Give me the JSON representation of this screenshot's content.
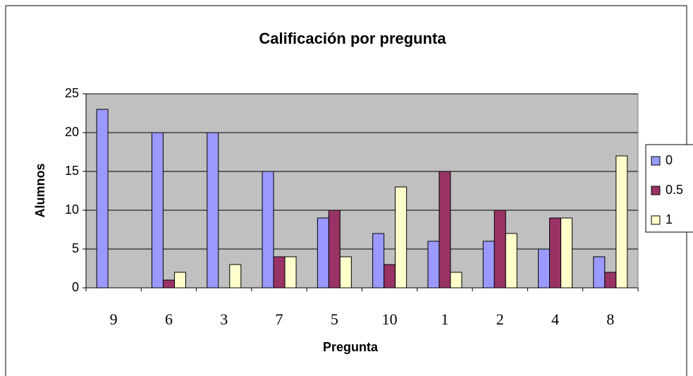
{
  "chart_data": {
    "type": "bar",
    "title": "Calificación por pregunta",
    "x_label": "Pregunta",
    "y_label": "Alumnos",
    "categories": [
      "9",
      "6",
      "3",
      "7",
      "5",
      "10",
      "1",
      "2",
      "4",
      "8"
    ],
    "series": [
      {
        "name": "0",
        "color": "#9999ff",
        "values": [
          23,
          20,
          20,
          15,
          9,
          7,
          6,
          6,
          5,
          4
        ]
      },
      {
        "name": "0.5",
        "color": "#993366",
        "values": [
          0,
          1,
          0,
          4,
          10,
          3,
          15,
          10,
          9,
          2
        ]
      },
      {
        "name": "1",
        "color": "#ffffcc",
        "values": [
          0,
          2,
          3,
          4,
          4,
          13,
          2,
          7,
          9,
          17
        ]
      }
    ],
    "ylim": [
      0,
      25
    ],
    "yticks": [
      0,
      5,
      10,
      15,
      20,
      25
    ],
    "grid": true,
    "legend": "right"
  }
}
